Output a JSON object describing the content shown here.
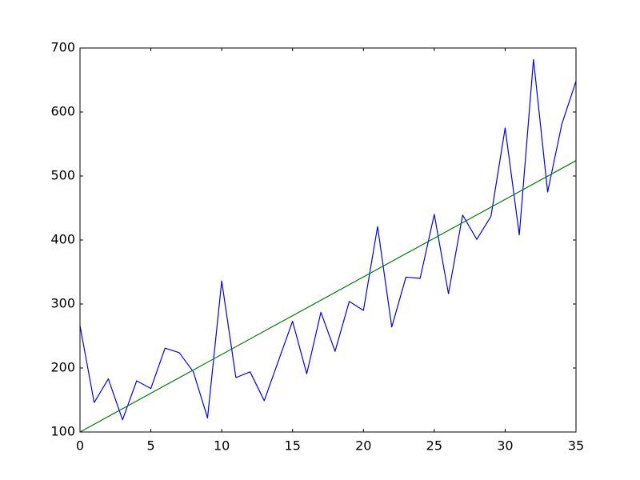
{
  "chart_data": {
    "type": "line",
    "title": "",
    "xlabel": "",
    "ylabel": "",
    "xlim": [
      0,
      35
    ],
    "ylim": [
      100,
      700
    ],
    "xticks": [
      0,
      5,
      10,
      15,
      20,
      25,
      30,
      35
    ],
    "yticks": [
      100,
      200,
      300,
      400,
      500,
      600,
      700
    ],
    "xtick_labels": [
      "0",
      "5",
      "10",
      "15",
      "20",
      "25",
      "30",
      "35"
    ],
    "ytick_labels": [
      "100",
      "200",
      "300",
      "400",
      "500",
      "600",
      "700"
    ],
    "grid": false,
    "legend": "none",
    "series": [
      {
        "color": "#0000ff",
        "x": [
          0,
          1,
          2,
          3,
          4,
          5,
          6,
          7,
          8,
          9,
          10,
          11,
          12,
          13,
          14,
          15,
          16,
          17,
          18,
          19,
          20,
          21,
          22,
          23,
          24,
          25,
          26,
          27,
          28,
          29,
          30,
          31,
          32,
          33,
          34,
          35
        ],
        "y": [
          266,
          146,
          183,
          119,
          180,
          168,
          231,
          224,
          194,
          122,
          336,
          185,
          194,
          149,
          211,
          273,
          191,
          287,
          226,
          304,
          290,
          421,
          264,
          342,
          340,
          440,
          316,
          439,
          401,
          437,
          575,
          408,
          682,
          475,
          581,
          648
        ]
      },
      {
        "color": "#008000",
        "x": [
          0,
          35
        ],
        "y": [
          100,
          524
        ]
      }
    ]
  }
}
